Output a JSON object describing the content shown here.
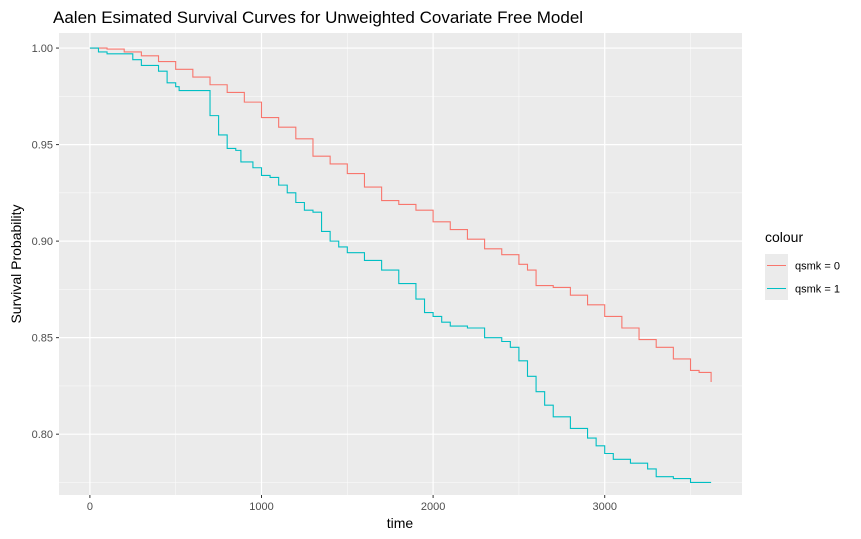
{
  "chart_data": {
    "type": "line",
    "title": "Aalen Esimated Survival Curves for Unweighted Covariate Free Model",
    "xlabel": "time",
    "ylabel": "Survival Probability",
    "xlim": [
      -180,
      3800
    ],
    "ylim": [
      0.7685,
      1.0078
    ],
    "x_ticks": [
      0,
      1000,
      2000,
      3000
    ],
    "x_tick_labels": [
      "0",
      "1000",
      "2000",
      "3000"
    ],
    "y_ticks": [
      0.8,
      0.85,
      0.9,
      0.95,
      1.0
    ],
    "y_tick_labels": [
      "0.80",
      "0.85",
      "0.90",
      "0.95",
      "1.00"
    ],
    "grid": true,
    "legend": {
      "title": "colour",
      "position": "right"
    },
    "series": [
      {
        "name": "qsmk = 0",
        "color": "#F8766D",
        "points": [
          [
            0,
            1.0
          ],
          [
            100,
            0.9995
          ],
          [
            200,
            0.998
          ],
          [
            300,
            0.996
          ],
          [
            400,
            0.993
          ],
          [
            500,
            0.989
          ],
          [
            600,
            0.985
          ],
          [
            700,
            0.981
          ],
          [
            800,
            0.977
          ],
          [
            900,
            0.972
          ],
          [
            1000,
            0.964
          ],
          [
            1100,
            0.959
          ],
          [
            1200,
            0.953
          ],
          [
            1300,
            0.944
          ],
          [
            1400,
            0.94
          ],
          [
            1500,
            0.935
          ],
          [
            1600,
            0.928
          ],
          [
            1700,
            0.921
          ],
          [
            1800,
            0.919
          ],
          [
            1900,
            0.916
          ],
          [
            2000,
            0.91
          ],
          [
            2100,
            0.906
          ],
          [
            2200,
            0.901
          ],
          [
            2300,
            0.896
          ],
          [
            2400,
            0.893
          ],
          [
            2500,
            0.888
          ],
          [
            2550,
            0.885
          ],
          [
            2600,
            0.877
          ],
          [
            2700,
            0.876
          ],
          [
            2800,
            0.872
          ],
          [
            2900,
            0.867
          ],
          [
            3000,
            0.861
          ],
          [
            3100,
            0.855
          ],
          [
            3200,
            0.849
          ],
          [
            3300,
            0.845
          ],
          [
            3400,
            0.839
          ],
          [
            3500,
            0.833
          ],
          [
            3550,
            0.832
          ],
          [
            3620,
            0.827
          ]
        ]
      },
      {
        "name": "qsmk = 1",
        "color": "#00BFC4",
        "points": [
          [
            0,
            1.0
          ],
          [
            50,
            0.998
          ],
          [
            100,
            0.997
          ],
          [
            200,
            0.997
          ],
          [
            250,
            0.994
          ],
          [
            300,
            0.991
          ],
          [
            400,
            0.988
          ],
          [
            450,
            0.982
          ],
          [
            500,
            0.98
          ],
          [
            520,
            0.978
          ],
          [
            620,
            0.978
          ],
          [
            700,
            0.965
          ],
          [
            750,
            0.955
          ],
          [
            800,
            0.948
          ],
          [
            850,
            0.947
          ],
          [
            880,
            0.941
          ],
          [
            950,
            0.938
          ],
          [
            1000,
            0.934
          ],
          [
            1050,
            0.933
          ],
          [
            1100,
            0.929
          ],
          [
            1150,
            0.925
          ],
          [
            1200,
            0.92
          ],
          [
            1250,
            0.916
          ],
          [
            1300,
            0.915
          ],
          [
            1350,
            0.905
          ],
          [
            1400,
            0.9
          ],
          [
            1450,
            0.897
          ],
          [
            1500,
            0.894
          ],
          [
            1600,
            0.89
          ],
          [
            1700,
            0.885
          ],
          [
            1800,
            0.878
          ],
          [
            1900,
            0.87
          ],
          [
            1950,
            0.863
          ],
          [
            2000,
            0.861
          ],
          [
            2050,
            0.858
          ],
          [
            2100,
            0.856
          ],
          [
            2200,
            0.855
          ],
          [
            2300,
            0.85
          ],
          [
            2400,
            0.848
          ],
          [
            2450,
            0.845
          ],
          [
            2500,
            0.838
          ],
          [
            2550,
            0.83
          ],
          [
            2600,
            0.822
          ],
          [
            2650,
            0.815
          ],
          [
            2700,
            0.809
          ],
          [
            2800,
            0.803
          ],
          [
            2900,
            0.798
          ],
          [
            2950,
            0.794
          ],
          [
            3000,
            0.79
          ],
          [
            3050,
            0.787
          ],
          [
            3100,
            0.787
          ],
          [
            3150,
            0.785
          ],
          [
            3250,
            0.782
          ],
          [
            3300,
            0.778
          ],
          [
            3400,
            0.777
          ],
          [
            3500,
            0.775
          ],
          [
            3620,
            0.775
          ]
        ]
      }
    ]
  }
}
